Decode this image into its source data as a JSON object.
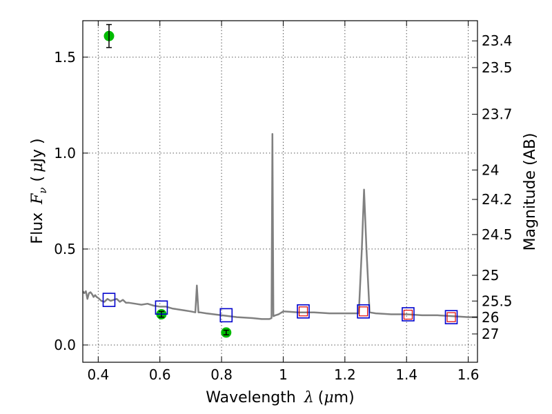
{
  "chart_data": {
    "type": "scatter",
    "xlabel_text": "Wavelength",
    "xlabel_symbol": "λ",
    "xlabel_unit_open": "(",
    "xlabel_unit_mu": "μ",
    "xlabel_unit_rest": "m)",
    "ylabel_text": "Flux",
    "ylabel_symbol": "F",
    "ylabel_sub": "ν",
    "ylabel_unit_open": "(",
    "ylabel_unit_mu": "μ",
    "ylabel_unit_rest": "Jy )",
    "y2label": "Magnitude (AB)",
    "xlim": [
      0.35,
      1.63
    ],
    "ylim": [
      -0.09,
      1.69
    ],
    "grid": true,
    "x_ticks": [
      0.4,
      0.6,
      0.8,
      1.0,
      1.2,
      1.4,
      1.6
    ],
    "x_tick_labels": [
      "0.4",
      "0.6",
      "0.8",
      "1",
      "1.2",
      "1.4",
      "1.6"
    ],
    "y_ticks": [
      0.0,
      0.5,
      1.0,
      1.5
    ],
    "y_tick_labels": [
      "0.0",
      "0.5",
      "1.0",
      "1.5"
    ],
    "mag_ticks": [
      23.4,
      23.5,
      23.7,
      24,
      24.2,
      24.5,
      25,
      25.5,
      26,
      27
    ],
    "mag_tick_labels": [
      "23.4",
      "23.5",
      "23.7",
      "24",
      "24.2",
      "24.5",
      "25",
      "25.5",
      "26",
      "27"
    ],
    "colors": {
      "model": "#808080",
      "observed": "#00bb00",
      "model_photometry": "#0000cc",
      "alt_photometry": "#dd0000",
      "axis": "#000000",
      "grid": "#555555"
    },
    "model_spectrum": {
      "x": [
        0.35,
        0.355,
        0.36,
        0.365,
        0.37,
        0.375,
        0.38,
        0.385,
        0.39,
        0.395,
        0.4,
        0.41,
        0.42,
        0.43,
        0.44,
        0.45,
        0.46,
        0.47,
        0.48,
        0.49,
        0.5,
        0.52,
        0.54,
        0.56,
        0.58,
        0.6,
        0.62,
        0.64,
        0.66,
        0.68,
        0.7,
        0.715,
        0.72,
        0.725,
        0.73,
        0.75,
        0.8,
        0.85,
        0.9,
        0.93,
        0.955,
        0.962,
        0.965,
        0.968,
        0.975,
        0.985,
        1.0,
        1.05,
        1.1,
        1.15,
        1.2,
        1.245,
        1.255,
        1.262,
        1.27,
        1.28,
        1.3,
        1.35,
        1.4,
        1.45,
        1.5,
        1.55,
        1.6,
        1.63
      ],
      "y": [
        0.28,
        0.27,
        0.28,
        0.24,
        0.27,
        0.275,
        0.265,
        0.25,
        0.26,
        0.25,
        0.245,
        0.23,
        0.225,
        0.24,
        0.23,
        0.235,
        0.24,
        0.225,
        0.235,
        0.22,
        0.22,
        0.215,
        0.21,
        0.215,
        0.205,
        0.2,
        0.2,
        0.19,
        0.185,
        0.18,
        0.175,
        0.17,
        0.31,
        0.17,
        0.17,
        0.165,
        0.155,
        0.145,
        0.14,
        0.135,
        0.135,
        0.14,
        1.1,
        0.15,
        0.155,
        0.16,
        0.175,
        0.17,
        0.17,
        0.165,
        0.165,
        0.165,
        0.5,
        0.81,
        0.5,
        0.17,
        0.165,
        0.16,
        0.16,
        0.155,
        0.155,
        0.15,
        0.145,
        0.145
      ]
    },
    "series": [
      {
        "x": [
          0.435,
          0.605,
          0.815
        ],
        "y": [
          1.61,
          0.16,
          0.065
        ],
        "yerr": [
          0.06,
          0.015,
          0.012
        ]
      },
      {
        "x": [
          0.435,
          0.605,
          0.815,
          1.065,
          1.26,
          1.405,
          1.545
        ],
        "y": [
          0.235,
          0.195,
          0.155,
          0.175,
          0.175,
          0.16,
          0.145
        ]
      },
      {
        "x": [
          1.065,
          1.26,
          1.405,
          1.545
        ],
        "y": [
          0.175,
          0.175,
          0.158,
          0.145
        ]
      }
    ]
  }
}
